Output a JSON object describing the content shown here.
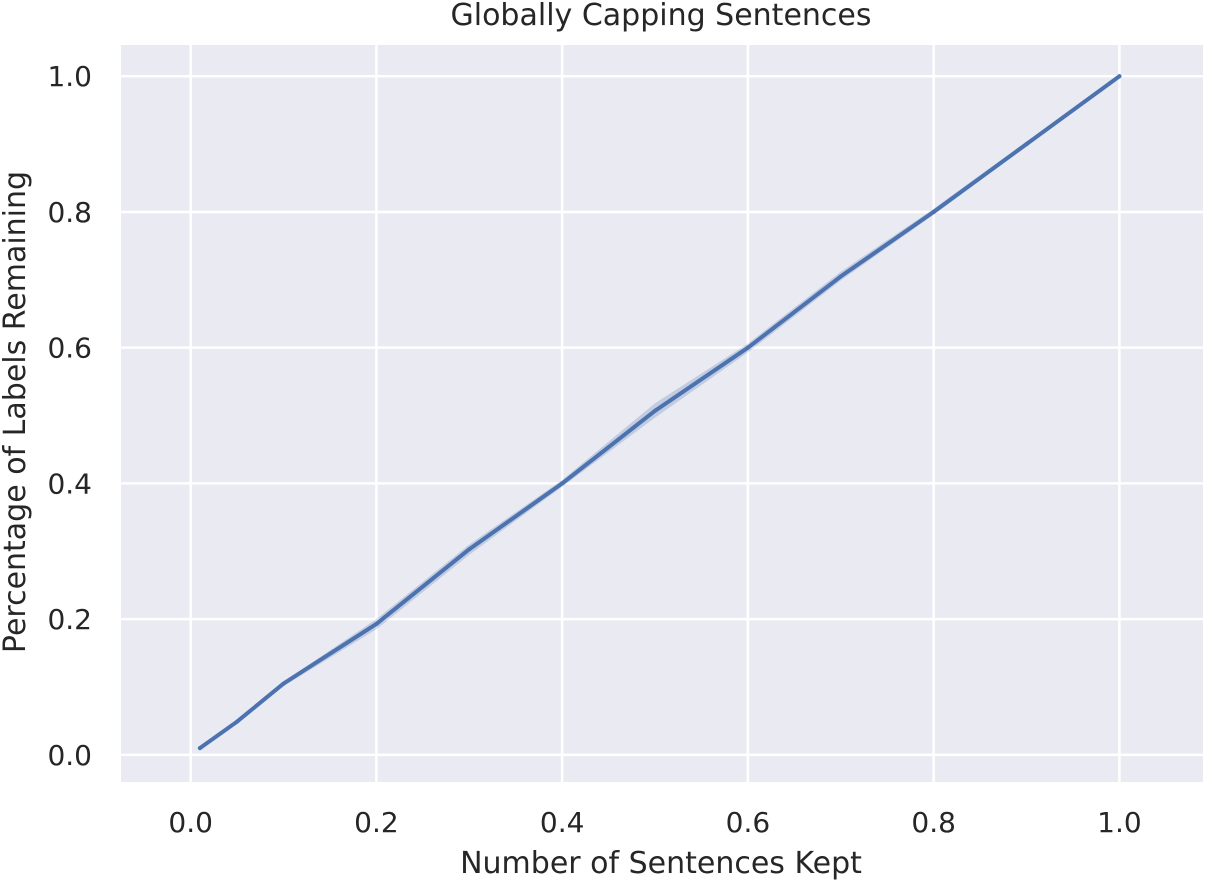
{
  "chart_data": {
    "type": "line",
    "title": "Globally Capping Sentences",
    "xlabel": "Number of Sentences Kept",
    "ylabel": "Percentage of Labels Remaining",
    "xlim": [
      -0.075,
      1.09
    ],
    "ylim": [
      -0.04,
      1.046
    ],
    "xticks": [
      "0.0",
      "0.2",
      "0.4",
      "0.6",
      "0.8",
      "1.0"
    ],
    "yticks": [
      "0.0",
      "0.2",
      "0.4",
      "0.6",
      "0.8",
      "1.0"
    ],
    "grid": true,
    "legend": "none",
    "series": [
      {
        "x": [
          0.01,
          0.05,
          0.1,
          0.2,
          0.3,
          0.4,
          0.5,
          0.6,
          0.7,
          0.8,
          0.9,
          1.0
        ],
        "values": [
          0.01,
          0.049,
          0.105,
          0.193,
          0.303,
          0.4,
          0.507,
          0.6,
          0.705,
          0.8,
          0.9,
          1.0
        ],
        "ci_low": [
          0.008,
          0.046,
          0.101,
          0.185,
          0.295,
          0.395,
          0.497,
          0.593,
          0.699,
          0.796,
          0.897,
          1.0
        ],
        "ci_high": [
          0.012,
          0.051,
          0.108,
          0.2,
          0.31,
          0.405,
          0.518,
          0.606,
          0.712,
          0.805,
          0.904,
          1.0
        ],
        "color": "#4c72b0"
      }
    ],
    "colors": {
      "plot_background": "#eaeaf2",
      "grid": "#ffffff",
      "line": "#4c72b0",
      "band": "#4c72b0",
      "text": "#262626"
    }
  }
}
